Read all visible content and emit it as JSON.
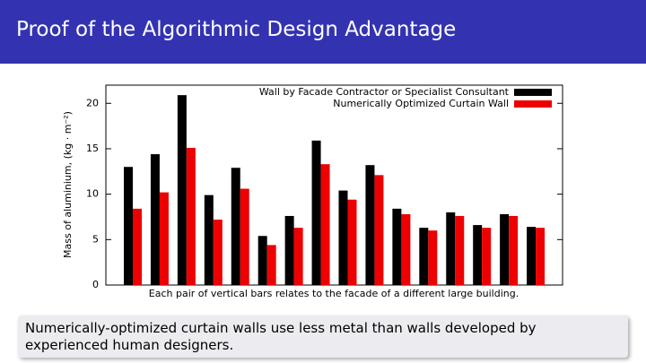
{
  "header": {
    "title": "Proof of the Algorithmic Design Advantage"
  },
  "chart_data": {
    "type": "bar",
    "y_label": "Mass of aluminium, (kg · m⁻²)",
    "x_label": "Each pair of vertical bars relates to the facade of a different large building.",
    "categories": [
      null,
      null,
      null,
      null,
      null,
      null,
      null,
      null,
      null,
      null,
      null,
      null,
      null,
      null,
      null,
      null
    ],
    "series": [
      {
        "name": "Wall by Facade Contractor or Specialist Consultant",
        "color": "#000000",
        "values": [
          13.0,
          14.4,
          20.9,
          9.9,
          12.9,
          5.4,
          7.6,
          15.9,
          10.4,
          13.2,
          8.4,
          6.3,
          8.0,
          6.6,
          7.8,
          6.4
        ]
      },
      {
        "name": "Numerically Optimized Curtain Wall",
        "color": "#ee0000",
        "values": [
          8.4,
          10.2,
          15.1,
          7.2,
          10.6,
          4.4,
          6.3,
          13.3,
          9.4,
          12.1,
          7.8,
          6.0,
          7.6,
          6.3,
          7.6,
          6.3
        ]
      }
    ],
    "ylim": [
      0,
      22
    ],
    "yticks": [
      0,
      5,
      10,
      15,
      20
    ],
    "legend": "top-right"
  },
  "callout": {
    "lines": [
      "Numerically-optimized curtain walls use less metal than walls developed by",
      "experienced human designers."
    ]
  }
}
